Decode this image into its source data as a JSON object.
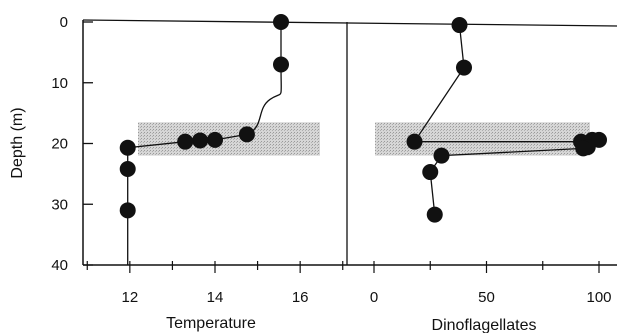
{
  "chart_data": {
    "type": "line",
    "y_axis": {
      "label": "Depth (m)",
      "range": [
        0,
        40
      ],
      "inverted": true,
      "ticks": [
        0,
        10,
        20,
        30,
        40
      ],
      "tick_labels": [
        "0",
        "10",
        "20",
        "30",
        "40"
      ]
    },
    "highlight_band": {
      "y_from": 16.5,
      "y_to": 22,
      "color": "#c8c8c8",
      "pattern": "stippled"
    },
    "panels": [
      {
        "xlabel": "Temperature",
        "xlim": [
          10.9,
          17.1
        ],
        "ticks": [
          12,
          14,
          16
        ],
        "tick_labels": [
          "12",
          "14",
          "16"
        ],
        "series": [
          {
            "points": [
              {
                "x": 15.55,
                "y": 0
              },
              {
                "x": 15.55,
                "y": 7
              },
              {
                "x": 14.75,
                "y": 18.5
              },
              {
                "x": 14.0,
                "y": 19.4
              },
              {
                "x": 13.65,
                "y": 19.5
              },
              {
                "x": 13.3,
                "y": 19.7
              },
              {
                "x": 11.95,
                "y": 20.7
              },
              {
                "x": 11.95,
                "y": 24.2
              },
              {
                "x": 11.95,
                "y": 31
              },
              {
                "x": 11.95,
                "y": 40
              }
            ],
            "markers": [
              true,
              true,
              true,
              true,
              true,
              true,
              true,
              true,
              true,
              false
            ],
            "color": "#111111"
          }
        ]
      },
      {
        "xlabel": "Dinoflagellates",
        "xlim": [
          -12,
          108
        ],
        "ticks": [
          0,
          50,
          100
        ],
        "tick_labels": [
          "0",
          "50",
          "100"
        ],
        "series": [
          {
            "points": [
              {
                "x": 38,
                "y": 0.5
              },
              {
                "x": 40,
                "y": 7.5
              },
              {
                "x": 18,
                "y": 19.7
              },
              {
                "x": 92,
                "y": 19.7
              },
              {
                "x": 97,
                "y": 19.4
              },
              {
                "x": 100,
                "y": 19.4
              },
              {
                "x": 95,
                "y": 20.6
              },
              {
                "x": 93,
                "y": 20.8
              },
              {
                "x": 30,
                "y": 22
              },
              {
                "x": 25,
                "y": 24.7
              },
              {
                "x": 27,
                "y": 31.7
              }
            ],
            "markers": [
              true,
              true,
              true,
              true,
              true,
              true,
              true,
              true,
              true,
              true,
              true
            ],
            "color": "#111111"
          }
        ]
      }
    ]
  }
}
